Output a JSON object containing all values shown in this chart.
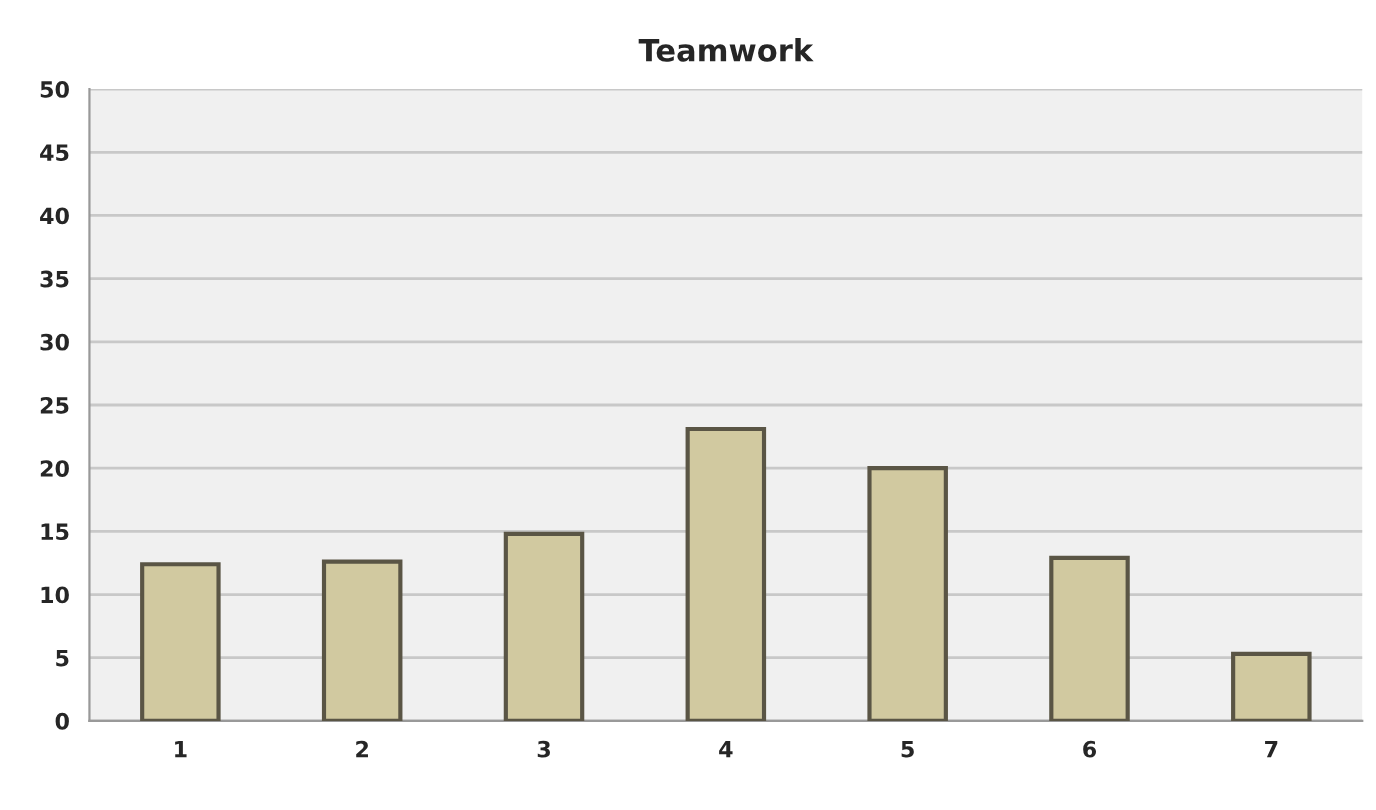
{
  "chart_data": {
    "type": "bar",
    "title": "Teamwork",
    "categories": [
      "1",
      "2",
      "3",
      "4",
      "5",
      "6",
      "7"
    ],
    "values": [
      12.4,
      12.6,
      14.8,
      23.1,
      20.0,
      12.9,
      5.3
    ],
    "color": "#d1c9a0",
    "ylim": [
      0,
      50
    ],
    "yticks": [
      0,
      5,
      10,
      15,
      20,
      25,
      30,
      35,
      40,
      45,
      50
    ],
    "grid": "y",
    "legend": false
  }
}
